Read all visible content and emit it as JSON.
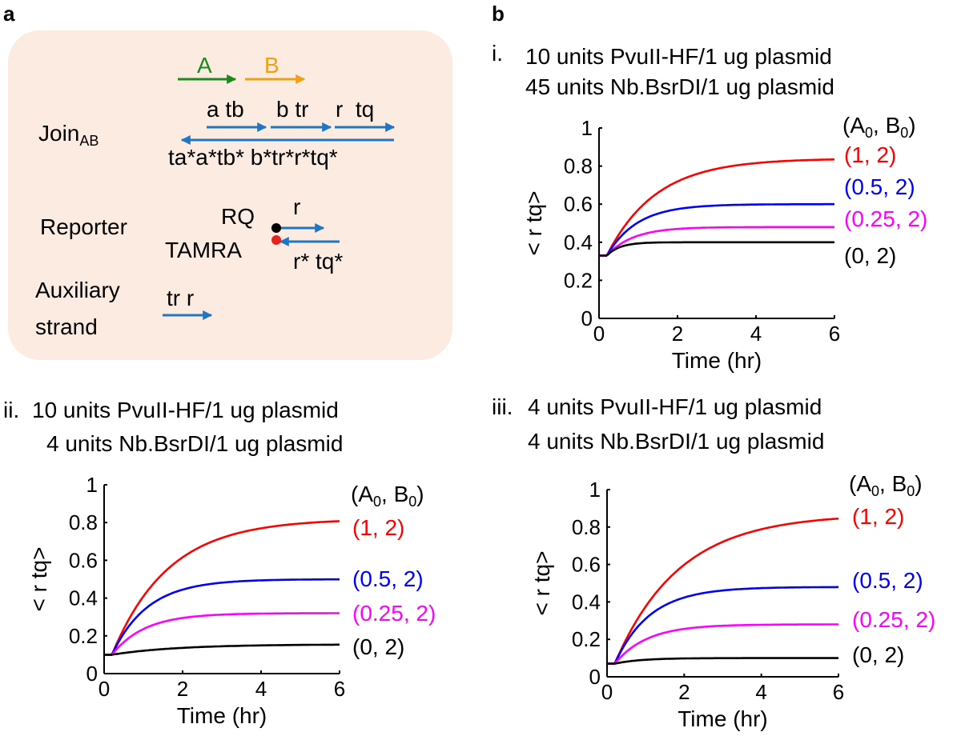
{
  "panel_labels": {
    "a": "a",
    "b": "b"
  },
  "colors": {
    "diagram_bg": "#fcebe0",
    "domain_A": "#1a8a1a",
    "domain_B": "#f0a010",
    "strand": "#1f77c4",
    "quencher": "#000000",
    "fluor": "#e8221a"
  },
  "diagram": {
    "domain_A": "A",
    "domain_B": "B",
    "join_label": "Join",
    "join_sub": "AB",
    "top_domains": {
      "a_tb": "a tb",
      "b_tr": "b tr",
      "r_tq": "r  tq"
    },
    "bottom_domains": "ta*a*tb* b*tr*r*tq*",
    "reporter_label": "Reporter",
    "rq_label": "RQ",
    "tamra_label": "TAMRA",
    "reporter_top": "r",
    "reporter_bottom": "r* tq*",
    "aux_label_1": "Auxiliary",
    "aux_label_2": "strand",
    "aux_domains": "tr r"
  },
  "chart_data": [
    {
      "type": "line",
      "panel": "i.",
      "title_lines": [
        "10 units PvuII-HF/1 ug plasmid",
        "45 units Nb.BsrDI/1 ug plasmid"
      ],
      "xlabel": "Time (hr)",
      "ylabel": "< r tq>",
      "xlim": [
        0,
        6
      ],
      "ylim": [
        0,
        1
      ],
      "xticks": [
        "0",
        "2",
        "4",
        "6"
      ],
      "yticks": [
        "0",
        "0.2",
        "0.4",
        "0.6",
        "0.8",
        "1"
      ],
      "legend_header": {
        "text": "(A",
        "sub1": "0",
        "mid": ", B",
        "sub2": "0",
        "end": ")"
      },
      "series": [
        {
          "name": "(1, 2)",
          "color": "#ff0000",
          "y0": 0.33,
          "plateau": 0.84,
          "k": 0.8
        },
        {
          "name": "(0.5, 2)",
          "color": "#0000ff",
          "y0": 0.33,
          "plateau": 0.6,
          "k": 1.3
        },
        {
          "name": "(0.25, 2)",
          "color": "#ff00ff",
          "y0": 0.33,
          "plateau": 0.48,
          "k": 1.5
        },
        {
          "name": "(0, 2)",
          "color": "#000000",
          "y0": 0.33,
          "plateau": 0.4,
          "k": 3.0
        }
      ]
    },
    {
      "type": "line",
      "panel": "ii.",
      "title_lines": [
        "10 units PvuII-HF/1 ug plasmid",
        "4 units Nb.BsrDI/1 ug plasmid"
      ],
      "xlabel": "Time (hr)",
      "ylabel": "< r tq>",
      "xlim": [
        0,
        6
      ],
      "ylim": [
        0,
        1
      ],
      "xticks": [
        "0",
        "2",
        "4",
        "6"
      ],
      "yticks": [
        "0",
        "0.2",
        "0.4",
        "0.6",
        "0.8",
        "1"
      ],
      "legend_header": {
        "text": "(A",
        "sub1": "0",
        "mid": ", B",
        "sub2": "0",
        "end": ")"
      },
      "series": [
        {
          "name": "(1, 2)",
          "color": "#ff0000",
          "y0": 0.1,
          "plateau": 0.82,
          "k": 0.7
        },
        {
          "name": "(0.5, 2)",
          "color": "#0000ff",
          "y0": 0.1,
          "plateau": 0.5,
          "k": 1.1
        },
        {
          "name": "(0.25, 2)",
          "color": "#ff00ff",
          "y0": 0.1,
          "plateau": 0.32,
          "k": 1.2
        },
        {
          "name": "(0, 2)",
          "color": "#000000",
          "y0": 0.1,
          "plateau": 0.155,
          "k": 0.6
        }
      ]
    },
    {
      "type": "line",
      "panel": "iii.",
      "title_lines": [
        "4 units PvuII-HF/1 ug plasmid",
        "4 units Nb.BsrDI/1 ug plasmid"
      ],
      "xlabel": "Time (hr)",
      "ylabel": "< r tq>",
      "xlim": [
        0,
        6
      ],
      "ylim": [
        0,
        1
      ],
      "xticks": [
        "0",
        "2",
        "4",
        "6"
      ],
      "yticks": [
        "0",
        "0.2",
        "0.4",
        "0.6",
        "0.8",
        "1"
      ],
      "legend_header": {
        "text": "(A",
        "sub1": "0",
        "mid": ", B",
        "sub2": "0",
        "end": ")"
      },
      "series": [
        {
          "name": "(1, 2)",
          "color": "#ff0000",
          "y0": 0.07,
          "plateau": 0.87,
          "k": 0.6
        },
        {
          "name": "(0.5, 2)",
          "color": "#0000ff",
          "y0": 0.07,
          "plateau": 0.48,
          "k": 1.1
        },
        {
          "name": "(0.25, 2)",
          "color": "#ff00ff",
          "y0": 0.07,
          "plateau": 0.28,
          "k": 1.2
        },
        {
          "name": "(0, 2)",
          "color": "#000000",
          "y0": 0.07,
          "plateau": 0.1,
          "k": 1.5
        }
      ]
    }
  ]
}
